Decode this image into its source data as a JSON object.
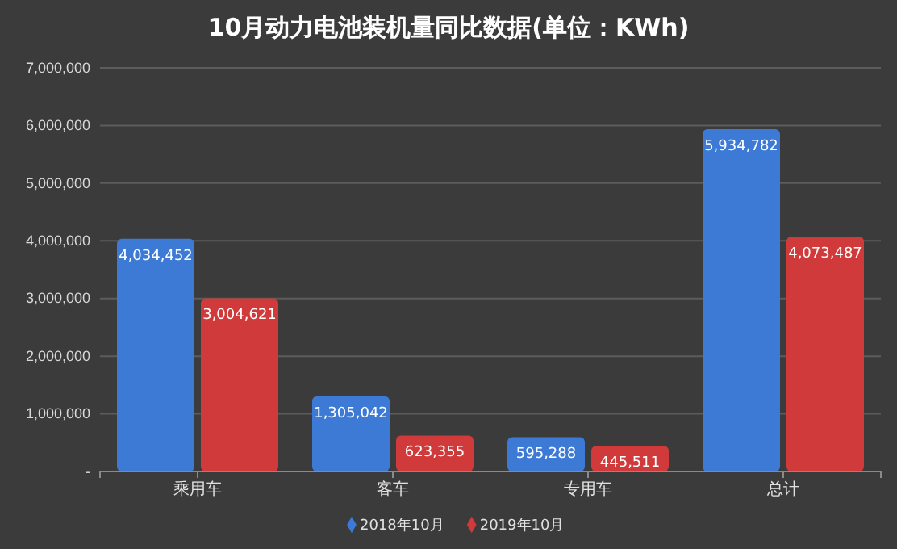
{
  "chart_data": {
    "type": "bar",
    "title": "10月动力电池装机量同比数据(单位：KWh)",
    "categories": [
      "乘用车",
      "客车",
      "专用车",
      "总计"
    ],
    "series": [
      {
        "name": "2018年10月",
        "color": "#3d7ad6",
        "values": [
          4034452,
          1305042,
          595288,
          5934782
        ],
        "value_labels": [
          "4,034,452",
          "1,305,042",
          "595,288",
          "5,934,782"
        ]
      },
      {
        "name": "2019年10月",
        "color": "#d03a3a",
        "values": [
          3004621,
          623355,
          445511,
          4073487
        ],
        "value_labels": [
          "3,004,621",
          "623,355",
          "445,511",
          "4,073,487"
        ]
      }
    ],
    "ylim": [
      0,
      7000000
    ],
    "yticks": [
      {
        "value": 0,
        "label": "-"
      },
      {
        "value": 1000000,
        "label": "1,000,000"
      },
      {
        "value": 2000000,
        "label": "2,000,000"
      },
      {
        "value": 3000000,
        "label": "3,000,000"
      },
      {
        "value": 4000000,
        "label": "4,000,000"
      },
      {
        "value": 5000000,
        "label": "5,000,000"
      },
      {
        "value": 6000000,
        "label": "6,000,000"
      },
      {
        "value": 7000000,
        "label": "7,000,000"
      }
    ],
    "grid": "y",
    "legend": "bottom"
  }
}
